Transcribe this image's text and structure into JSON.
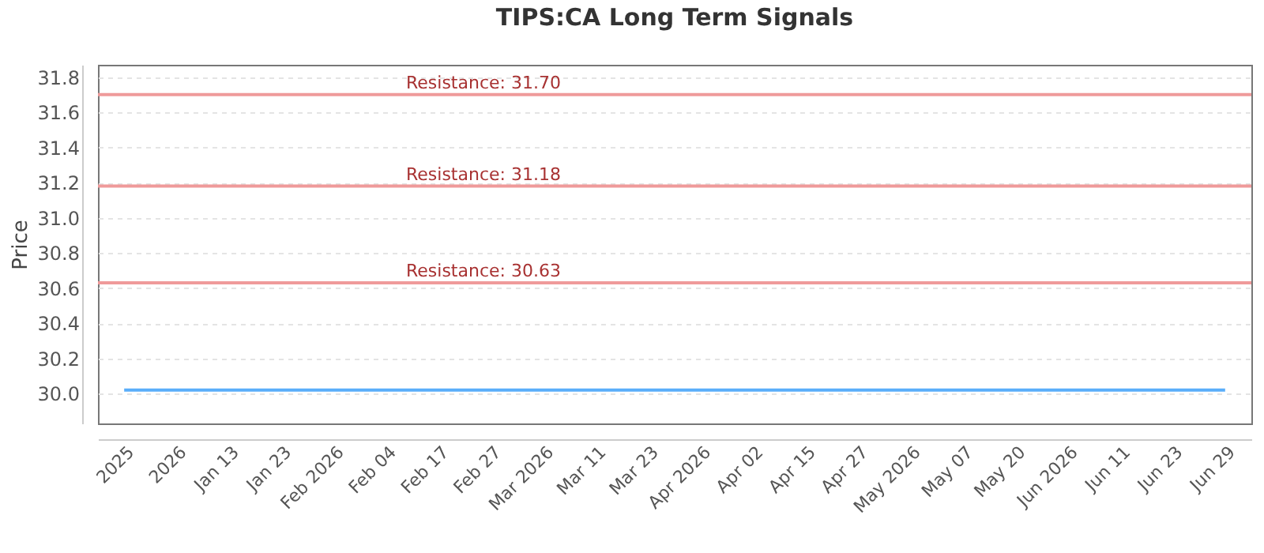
{
  "chart_data": {
    "type": "line",
    "title": "TIPS:CA Long Term Signals",
    "ylabel": "Price",
    "categories": [
      "2025",
      "2026",
      "Jan 13",
      "Jan 23",
      "Feb 2026",
      "Feb 04",
      "Feb 17",
      "Feb 27",
      "Mar 2026",
      "Mar 11",
      "Mar 23",
      "Apr 2026",
      "Apr 02",
      "Apr 15",
      "Apr 27",
      "May 2026",
      "May 07",
      "May 20",
      "Jun 2026",
      "Jun 11",
      "Jun 23",
      "Jun 29"
    ],
    "series": [
      {
        "color": "#5aaefa",
        "values": [
          30.02,
          30.02,
          30.02,
          30.02,
          30.02,
          30.02,
          30.02,
          30.02,
          30.02,
          30.02,
          30.02,
          30.02,
          30.02,
          30.02,
          30.02,
          30.02,
          30.02,
          30.02,
          30.02,
          30.02,
          30.02,
          30.02
        ]
      }
    ],
    "ylim": [
      29.83,
      31.87
    ],
    "yticks": [
      {
        "value": 30,
        "label": "30.0"
      },
      {
        "value": 30.2,
        "label": "30.2"
      },
      {
        "value": 30.4,
        "label": "30.4"
      },
      {
        "value": 30.6,
        "label": "30.6"
      },
      {
        "value": 30.8,
        "label": "30.8"
      },
      {
        "value": 31,
        "label": "31.0"
      },
      {
        "value": 31.2,
        "label": "31.2"
      },
      {
        "value": 31.4,
        "label": "31.4"
      },
      {
        "value": 31.6,
        "label": "31.6"
      },
      {
        "value": 31.8,
        "label": "31.8"
      }
    ],
    "grid": "y",
    "marker": "none",
    "line_style": "solid",
    "ref_lines": [
      {
        "axis": "y",
        "value": 31.7,
        "label": "Resistance: 31.70",
        "color": "#ef9a9a"
      },
      {
        "axis": "y",
        "value": 31.18,
        "label": "Resistance: 31.18",
        "color": "#ef9a9a"
      },
      {
        "axis": "y",
        "value": 30.63,
        "label": "Resistance: 30.63",
        "color": "#ef9a9a"
      }
    ]
  }
}
